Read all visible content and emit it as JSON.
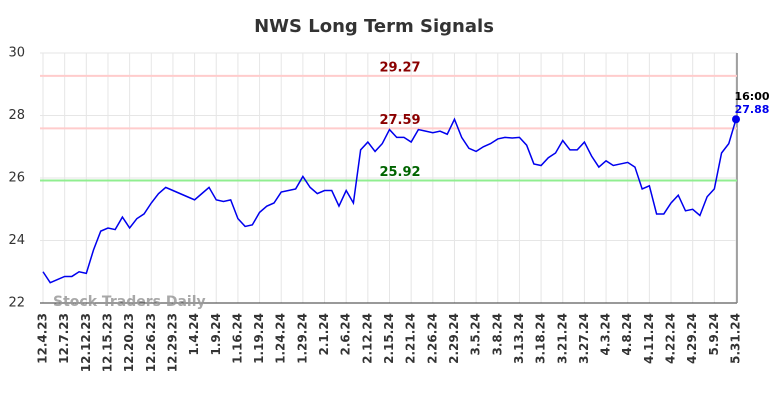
{
  "chart_data": {
    "type": "line",
    "title": "NWS Long Term Signals",
    "categories": [
      "12.4.23",
      null,
      null,
      "12.7.23",
      null,
      null,
      "12.12.23",
      null,
      null,
      "12.15.23",
      null,
      null,
      "12.20.23",
      null,
      null,
      "12.26.23",
      null,
      null,
      "12.29.23",
      null,
      null,
      "1.4.24",
      null,
      null,
      "1.9.24",
      null,
      null,
      "1.16.24",
      null,
      null,
      "1.19.24",
      null,
      null,
      "1.24.24",
      null,
      null,
      "1.29.24",
      null,
      null,
      "2.1.24",
      null,
      null,
      "2.6.24",
      null,
      null,
      "2.12.24",
      null,
      null,
      "2.15.24",
      null,
      null,
      "2.21.24",
      null,
      null,
      "2.26.24",
      null,
      null,
      "2.29.24",
      null,
      null,
      "3.5.24",
      null,
      null,
      "3.8.24",
      null,
      null,
      "3.13.24",
      null,
      null,
      "3.18.24",
      null,
      null,
      "3.21.24",
      null,
      null,
      "3.27.24",
      null,
      null,
      "4.3.24",
      null,
      null,
      "4.8.24",
      null,
      null,
      "4.11.24",
      null,
      null,
      "4.22.24",
      null,
      null,
      "4.29.24",
      null,
      null,
      "5.9.24",
      null,
      null,
      "5.31.24"
    ],
    "series": [
      {
        "color": "#0000ee",
        "values": [
          23.0,
          22.65,
          22.75,
          22.85,
          22.85,
          23.0,
          22.95,
          23.7,
          24.3,
          24.4,
          24.35,
          24.75,
          24.4,
          24.7,
          24.85,
          25.2,
          25.5,
          25.7,
          25.6,
          25.5,
          25.4,
          25.3,
          25.5,
          25.7,
          25.3,
          25.25,
          25.3,
          24.7,
          24.45,
          24.5,
          24.9,
          25.1,
          25.2,
          25.55,
          25.6,
          25.65,
          26.05,
          25.7,
          25.5,
          25.6,
          25.6,
          25.1,
          25.6,
          25.2,
          26.9,
          27.15,
          26.85,
          27.1,
          27.55,
          27.3,
          27.3,
          27.15,
          27.55,
          27.5,
          27.45,
          27.5,
          27.4,
          27.88,
          27.3,
          26.95,
          26.85,
          27.0,
          27.1,
          27.25,
          27.3,
          27.28,
          27.3,
          27.05,
          26.45,
          26.4,
          26.65,
          26.8,
          27.2,
          26.9,
          26.9,
          27.15,
          26.7,
          26.35,
          26.55,
          26.4,
          26.45,
          26.5,
          26.35,
          25.65,
          25.75,
          24.85,
          24.85,
          25.2,
          25.45,
          24.95,
          25.0,
          24.8,
          25.4,
          25.65,
          26.8,
          27.1,
          27.88
        ]
      }
    ],
    "hlines": [
      {
        "value": 29.27,
        "color": "#ffcccc",
        "label_color": "#8b0000"
      },
      {
        "value": 27.59,
        "color": "#ffcccc",
        "label_color": "#8b0000"
      },
      {
        "value": 25.92,
        "color": "#90ee90",
        "label_color": "#006400"
      }
    ],
    "last_time": "16:00",
    "watermark": "Stock Traders Daily",
    "ylim": [
      22,
      30
    ],
    "yticks": [
      22,
      24,
      26,
      28,
      30
    ],
    "grid": true
  }
}
